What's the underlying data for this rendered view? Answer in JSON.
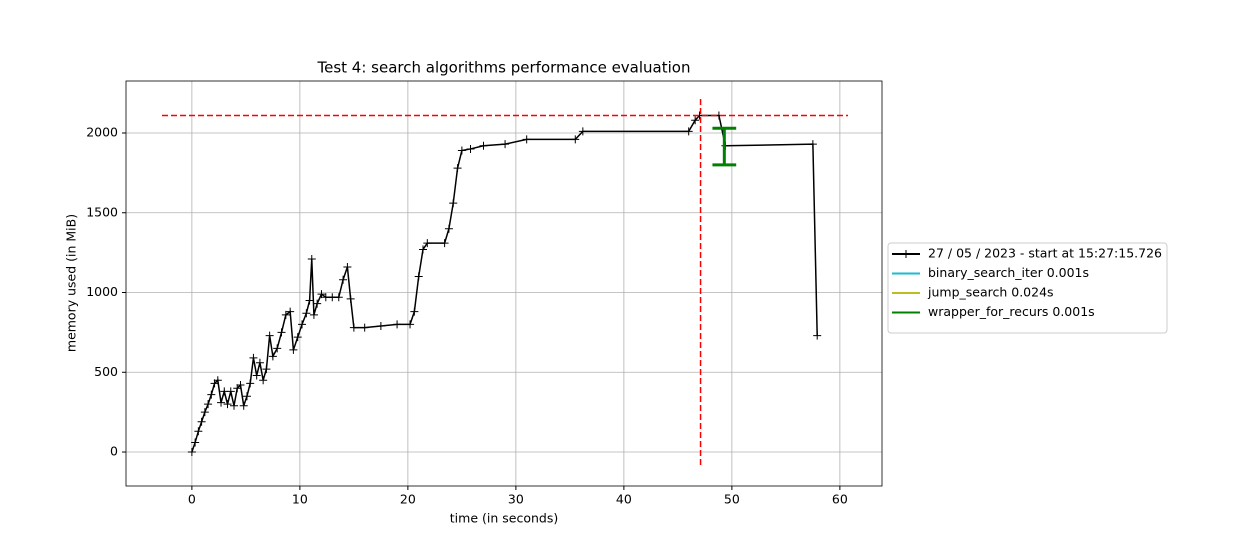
{
  "chart_data": {
    "type": "line",
    "title": "Test 4: search algorithms performance evaluation",
    "xlabel": "time (in seconds)",
    "ylabel": "memory used (in MiB)",
    "xlim": [
      -6.1,
      63.9
    ],
    "ylim": [
      -213,
      2326
    ],
    "xticks": [
      0,
      10,
      20,
      30,
      40,
      50,
      60
    ],
    "yticks": [
      0,
      500,
      1000,
      1500,
      2000
    ],
    "grid": true,
    "legend": "right",
    "series": [
      {
        "name": "27 / 05 / 2023 - start at 15:27:15.726",
        "color": "#000000",
        "marker": "+",
        "x": [
          0,
          0.3,
          0.6,
          0.9,
          1.2,
          1.5,
          1.8,
          2.1,
          2.4,
          2.7,
          3.0,
          3.3,
          3.6,
          3.9,
          4.2,
          4.5,
          4.8,
          5.1,
          5.4,
          5.7,
          6.0,
          6.3,
          6.6,
          6.9,
          7.2,
          7.5,
          7.9,
          8.3,
          8.7,
          9.1,
          9.4,
          9.8,
          10.2,
          10.6,
          10.9,
          11.1,
          11.3,
          11.6,
          12.0,
          12.4,
          13.0,
          13.6,
          14.0,
          14.4,
          14.7,
          15.0,
          16,
          17.5,
          19,
          20.2,
          20.6,
          21.0,
          21.4,
          21.8,
          23.4,
          23.8,
          24.2,
          24.6,
          25,
          25.8,
          27,
          29,
          31,
          35.5,
          36.2,
          46,
          46.6,
          47,
          48.8,
          49.4,
          57.5,
          57.9
        ],
        "values": [
          0,
          60,
          130,
          190,
          250,
          300,
          360,
          430,
          450,
          310,
          380,
          300,
          380,
          290,
          400,
          420,
          290,
          350,
          430,
          590,
          480,
          560,
          450,
          520,
          730,
          600,
          650,
          750,
          860,
          880,
          640,
          720,
          800,
          870,
          950,
          1210,
          860,
          930,
          990,
          970,
          970,
          970,
          1080,
          1160,
          960,
          780,
          780,
          790,
          800,
          800,
          880,
          1100,
          1270,
          1310,
          1310,
          1400,
          1560,
          1780,
          1890,
          1900,
          1920,
          1930,
          1960,
          1960,
          2010,
          2010,
          2080,
          2110,
          2110,
          1920,
          1930,
          730
        ]
      },
      {
        "name": "binary_search_iter 0.001s",
        "color": "#17becf"
      },
      {
        "name": "jump_search 0.024s",
        "color": "#bcbd22"
      },
      {
        "name": "wrapper_for_recurs 0.001s",
        "color": "#008000",
        "start": 48.2,
        "end": 50.4,
        "mem_min": 1800,
        "mem_max": 2030
      }
    ],
    "hlines": [
      {
        "y": 2110,
        "color": "#ff0000"
      }
    ],
    "vlines": [
      {
        "x": 47.1,
        "color": "#ff0000"
      }
    ]
  }
}
